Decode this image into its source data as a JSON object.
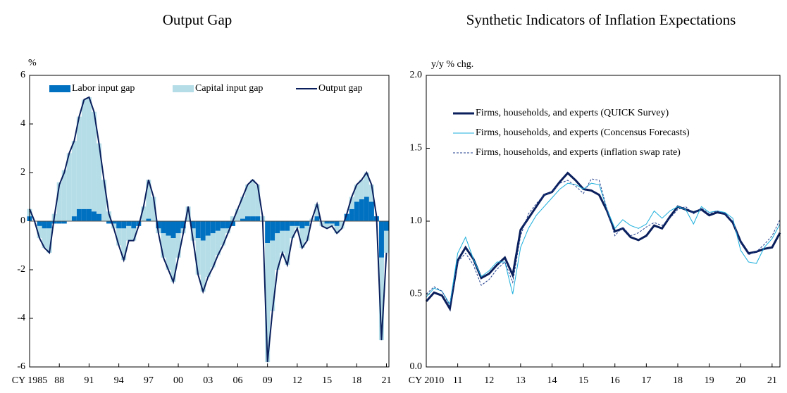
{
  "chart_data": [
    {
      "type": "bar_line",
      "title": "Output Gap",
      "ylabel": "%",
      "legend": "top",
      "x": [
        1985,
        1985.5,
        1986,
        1986.5,
        1987,
        1987.5,
        1988,
        1988.5,
        1989,
        1989.5,
        1990,
        1990.5,
        1991,
        1991.5,
        1992,
        1992.5,
        1993,
        1993.5,
        1994,
        1994.5,
        1995,
        1995.5,
        1996,
        1996.5,
        1997,
        1997.5,
        1998,
        1998.5,
        1999,
        1999.5,
        2000,
        2000.5,
        2001,
        2001.5,
        2002,
        2002.5,
        2003,
        2003.5,
        2004,
        2004.5,
        2005,
        2005.5,
        2006,
        2006.5,
        2007,
        2007.5,
        2008,
        2008.5,
        2009,
        2009.5,
        2010,
        2010.5,
        2011,
        2011.5,
        2012,
        2012.5,
        2013,
        2013.5,
        2014,
        2014.5,
        2015,
        2015.5,
        2016,
        2016.5,
        2017,
        2017.5,
        2018,
        2018.5,
        2019,
        2019.5,
        2020,
        2020.5,
        2021
      ],
      "series": [
        {
          "name": "Labor input gap",
          "kind": "bar",
          "color": "#0070c0",
          "values": [
            0.2,
            0.0,
            -0.2,
            -0.3,
            -0.3,
            -0.1,
            -0.1,
            -0.1,
            0.0,
            0.2,
            0.5,
            0.5,
            0.5,
            0.4,
            0.3,
            0.0,
            -0.1,
            -0.1,
            -0.3,
            -0.3,
            -0.2,
            -0.3,
            -0.2,
            0.0,
            0.1,
            0.0,
            -0.3,
            -0.5,
            -0.6,
            -0.7,
            -0.5,
            -0.3,
            0.0,
            -0.3,
            -0.7,
            -0.8,
            -0.6,
            -0.5,
            -0.4,
            -0.3,
            -0.3,
            -0.2,
            0.0,
            0.1,
            0.2,
            0.2,
            0.2,
            0.0,
            -0.9,
            -0.8,
            -0.5,
            -0.4,
            -0.4,
            -0.2,
            -0.2,
            -0.3,
            -0.2,
            0.0,
            0.2,
            0.0,
            -0.1,
            -0.1,
            -0.2,
            0.0,
            0.3,
            0.5,
            0.8,
            0.9,
            1.0,
            0.8,
            0.2,
            -1.5,
            -0.4
          ]
        },
        {
          "name": "Capital input gap",
          "kind": "bar",
          "color": "#b4dde8",
          "values": [
            0.3,
            0.0,
            -0.5,
            -0.8,
            -1.0,
            0.3,
            1.6,
            2.1,
            2.8,
            3.1,
            3.8,
            4.5,
            4.6,
            4.1,
            2.9,
            1.7,
            0.4,
            -0.2,
            -0.7,
            -1.3,
            -0.6,
            -0.5,
            0.0,
            0.6,
            1.6,
            1.0,
            -0.2,
            -1.0,
            -1.4,
            -1.8,
            -1.0,
            -0.2,
            0.6,
            -0.5,
            -1.5,
            -2.1,
            -1.7,
            -1.4,
            -1.0,
            -0.7,
            -0.2,
            0.2,
            0.5,
            0.9,
            1.3,
            1.5,
            1.3,
            0.2,
            -4.9,
            -2.9,
            -1.5,
            -0.9,
            -1.4,
            -0.5,
            -0.1,
            -0.8,
            -0.6,
            0.1,
            0.5,
            -0.2,
            -0.2,
            -0.1,
            -0.3,
            -0.3,
            0.0,
            0.5,
            0.7,
            0.8,
            1.0,
            0.7,
            0.0,
            -3.4,
            -0.9
          ]
        },
        {
          "name": "Output gap",
          "kind": "line",
          "color": "#0a1f5c",
          "width": 2,
          "values": [
            0.5,
            0.0,
            -0.7,
            -1.1,
            -1.3,
            0.2,
            1.5,
            2.0,
            2.8,
            3.3,
            4.3,
            5.0,
            5.1,
            4.5,
            3.2,
            1.7,
            0.3,
            -0.3,
            -1.0,
            -1.6,
            -0.8,
            -0.8,
            -0.2,
            0.6,
            1.7,
            1.0,
            -0.5,
            -1.5,
            -2.0,
            -2.5,
            -1.5,
            -0.5,
            0.6,
            -0.8,
            -2.2,
            -2.9,
            -2.3,
            -1.9,
            -1.4,
            -1.0,
            -0.5,
            0.0,
            0.5,
            1.0,
            1.5,
            1.7,
            1.5,
            0.2,
            -5.8,
            -3.7,
            -2.0,
            -1.3,
            -1.8,
            -0.7,
            -0.3,
            -1.1,
            -0.8,
            0.1,
            0.7,
            -0.2,
            -0.3,
            -0.2,
            -0.5,
            -0.3,
            0.3,
            1.0,
            1.5,
            1.7,
            2.0,
            1.5,
            0.2,
            -4.9,
            -1.3
          ]
        }
      ],
      "xlim": [
        1985,
        2021.25
      ],
      "xticks": [
        {
          "value": 1985,
          "label": "CY 1985"
        },
        {
          "value": 1988,
          "label": "88"
        },
        {
          "value": 1991,
          "label": "91"
        },
        {
          "value": 1994,
          "label": "94"
        },
        {
          "value": 1997,
          "label": "97"
        },
        {
          "value": 2000,
          "label": "00"
        },
        {
          "value": 2003,
          "label": "03"
        },
        {
          "value": 2006,
          "label": "06"
        },
        {
          "value": 2009,
          "label": "09"
        },
        {
          "value": 2012,
          "label": "12"
        },
        {
          "value": 2015,
          "label": "15"
        },
        {
          "value": 2018,
          "label": "18"
        },
        {
          "value": 2021,
          "label": "21"
        }
      ],
      "ylim": [
        -6,
        6
      ],
      "yticks": [
        -6,
        -4,
        -2,
        0,
        2,
        4,
        6
      ]
    },
    {
      "type": "line",
      "title": "Synthetic Indicators of Inflation Expectations",
      "ylabel": "y/y % chg.",
      "legend": "upper left",
      "x": [
        2010,
        2010.25,
        2010.5,
        2010.75,
        2011,
        2011.25,
        2011.5,
        2011.75,
        2012,
        2012.25,
        2012.5,
        2012.75,
        2013,
        2013.25,
        2013.5,
        2013.75,
        2014,
        2014.25,
        2014.5,
        2014.75,
        2015,
        2015.25,
        2015.5,
        2015.75,
        2016,
        2016.25,
        2016.5,
        2016.75,
        2017,
        2017.25,
        2017.5,
        2017.75,
        2018,
        2018.25,
        2018.5,
        2018.75,
        2019,
        2019.25,
        2019.5,
        2019.75,
        2020,
        2020.25,
        2020.5,
        2020.75,
        2021,
        2021.25
      ],
      "series": [
        {
          "name": "Firms, households, and experts (QUICK Survey)",
          "kind": "line",
          "color": "#0a1f5c",
          "width": 3,
          "values": [
            0.45,
            0.51,
            0.49,
            0.4,
            0.73,
            0.82,
            0.74,
            0.61,
            0.64,
            0.7,
            0.75,
            0.63,
            0.94,
            1.02,
            1.1,
            1.18,
            1.2,
            1.27,
            1.33,
            1.28,
            1.22,
            1.21,
            1.18,
            1.07,
            0.93,
            0.95,
            0.89,
            0.87,
            0.9,
            0.97,
            0.95,
            1.03,
            1.1,
            1.08,
            1.06,
            1.08,
            1.04,
            1.06,
            1.05,
            0.99,
            0.86,
            0.78,
            0.79,
            0.81,
            0.82,
            0.92
          ]
        },
        {
          "name": "Firms, households, and experts (Concensus Forecasts)",
          "kind": "line",
          "color": "#1aaedc",
          "width": 1,
          "values": [
            0.48,
            0.54,
            0.52,
            0.43,
            0.78,
            0.89,
            0.74,
            0.62,
            0.66,
            0.72,
            0.72,
            0.5,
            0.82,
            0.95,
            1.04,
            1.1,
            1.16,
            1.22,
            1.26,
            1.25,
            1.22,
            1.26,
            1.25,
            1.08,
            0.95,
            1.01,
            0.97,
            0.95,
            0.98,
            1.07,
            1.02,
            1.07,
            1.1,
            1.08,
            0.98,
            1.1,
            1.06,
            1.07,
            1.06,
            1.02,
            0.8,
            0.72,
            0.71,
            0.82,
            0.88,
            0.98
          ]
        },
        {
          "name": "Firms, households, and experts (inflation swap rate)",
          "kind": "line",
          "color": "#1f3d8c",
          "width": 1,
          "dash": true,
          "values": [
            0.5,
            0.55,
            0.52,
            0.42,
            0.72,
            0.78,
            0.7,
            0.56,
            0.6,
            0.67,
            0.72,
            0.58,
            0.9,
            1.05,
            1.12,
            1.18,
            1.2,
            1.26,
            1.28,
            1.24,
            1.19,
            1.29,
            1.28,
            1.08,
            0.9,
            0.96,
            0.9,
            0.92,
            0.96,
            0.99,
            0.97,
            1.02,
            1.08,
            1.1,
            1.05,
            1.09,
            1.05,
            1.07,
            1.05,
            1.0,
            0.85,
            0.77,
            0.79,
            0.84,
            0.9,
            1.01
          ]
        }
      ],
      "xlim": [
        2010,
        2021.25
      ],
      "xticks": [
        {
          "value": 2010,
          "label": "CY 2010"
        },
        {
          "value": 2011,
          "label": "11"
        },
        {
          "value": 2012,
          "label": "12"
        },
        {
          "value": 2013,
          "label": "13"
        },
        {
          "value": 2014,
          "label": "14"
        },
        {
          "value": 2015,
          "label": "15"
        },
        {
          "value": 2016,
          "label": "16"
        },
        {
          "value": 2017,
          "label": "17"
        },
        {
          "value": 2018,
          "label": "18"
        },
        {
          "value": 2019,
          "label": "19"
        },
        {
          "value": 2020,
          "label": "20"
        },
        {
          "value": 2021,
          "label": "21"
        }
      ],
      "ylim": [
        0,
        2
      ],
      "yticks": [
        {
          "value": 0,
          "label": "0.0"
        },
        {
          "value": 0.5,
          "label": "0.5"
        },
        {
          "value": 1,
          "label": "1.0"
        },
        {
          "value": 1.5,
          "label": "1.5"
        },
        {
          "value": 2,
          "label": "2.0"
        }
      ]
    }
  ]
}
